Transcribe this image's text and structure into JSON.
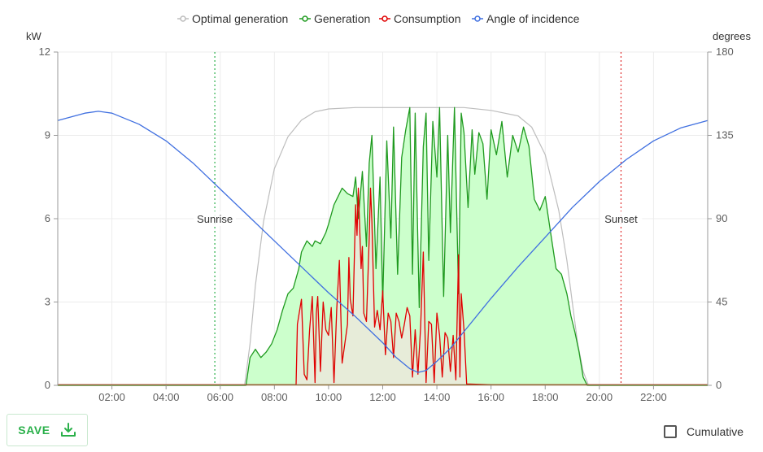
{
  "chart_data": {
    "type": "line",
    "x_unit": "hours",
    "x_range": [
      0,
      24
    ],
    "x_ticks": [
      {
        "value": 2,
        "label": "02:00"
      },
      {
        "value": 4,
        "label": "04:00"
      },
      {
        "value": 6,
        "label": "06:00"
      },
      {
        "value": 8,
        "label": "08:00"
      },
      {
        "value": 10,
        "label": "10:00"
      },
      {
        "value": 12,
        "label": "12:00"
      },
      {
        "value": 14,
        "label": "14:00"
      },
      {
        "value": 16,
        "label": "16:00"
      },
      {
        "value": 18,
        "label": "18:00"
      },
      {
        "value": 20,
        "label": "20:00"
      },
      {
        "value": 22,
        "label": "22:00"
      }
    ],
    "y_left": {
      "label": "kW",
      "range": [
        0,
        12
      ],
      "ticks": [
        0,
        3,
        6,
        9,
        12
      ]
    },
    "y_right": {
      "label": "degrees",
      "range": [
        0,
        180
      ],
      "ticks": [
        0,
        45,
        90,
        135,
        180
      ]
    },
    "grid": true,
    "legend_position": "top",
    "series": [
      {
        "name": "Optimal generation",
        "color": "#bdbdbd",
        "axis": "left",
        "x": [
          0,
          6.9,
          7.1,
          7.3,
          7.6,
          8.0,
          8.5,
          9.0,
          9.5,
          10.0,
          11.0,
          12.0,
          13.0,
          14.0,
          15.0,
          16.0,
          17.0,
          17.5,
          18.0,
          18.5,
          18.8,
          19.0,
          19.2,
          19.4,
          19.6,
          24
        ],
        "y": [
          0,
          0,
          1.5,
          3.6,
          5.9,
          7.8,
          8.95,
          9.55,
          9.85,
          9.95,
          10.0,
          10.0,
          10.0,
          10.0,
          10.0,
          9.9,
          9.7,
          9.3,
          8.3,
          6.3,
          4.5,
          3.0,
          1.5,
          0.5,
          0,
          0
        ]
      },
      {
        "name": "Generation",
        "color": "#1f9a1f",
        "fill": "#ccffcc",
        "axis": "left",
        "x": [
          0,
          6.95,
          7.1,
          7.3,
          7.5,
          7.7,
          7.9,
          8.1,
          8.3,
          8.5,
          8.7,
          8.9,
          9.0,
          9.2,
          9.4,
          9.5,
          9.7,
          9.9,
          10.0,
          10.2,
          10.35,
          10.5,
          10.7,
          10.9,
          11.0,
          11.1,
          11.25,
          11.4,
          11.5,
          11.6,
          11.75,
          11.9,
          12.0,
          12.15,
          12.3,
          12.4,
          12.55,
          12.7,
          12.85,
          13.0,
          13.1,
          13.2,
          13.35,
          13.5,
          13.6,
          13.7,
          13.85,
          14.0,
          14.1,
          14.25,
          14.4,
          14.5,
          14.65,
          14.8,
          14.9,
          15.0,
          15.15,
          15.3,
          15.4,
          15.55,
          15.7,
          15.85,
          16.0,
          16.2,
          16.4,
          16.6,
          16.8,
          17.0,
          17.2,
          17.4,
          17.6,
          17.8,
          18.0,
          18.2,
          18.4,
          18.6,
          18.8,
          18.95,
          19.1,
          19.25,
          19.4,
          19.55,
          19.6,
          24
        ],
        "y": [
          0,
          0,
          1.0,
          1.3,
          1.0,
          1.2,
          1.5,
          2.0,
          2.7,
          3.3,
          3.5,
          4.2,
          4.8,
          5.2,
          5.0,
          5.2,
          5.1,
          5.5,
          5.8,
          6.5,
          6.8,
          7.1,
          6.9,
          6.8,
          7.5,
          6.0,
          7.7,
          5.0,
          8.0,
          9.0,
          4.2,
          7.5,
          3.0,
          8.8,
          5.3,
          9.3,
          4.0,
          8.2,
          9.2,
          10.0,
          4.0,
          9.8,
          2.8,
          8.6,
          9.8,
          4.5,
          9.5,
          7.5,
          10.0,
          3.2,
          9.0,
          5.5,
          10.0,
          3.3,
          9.8,
          9.1,
          6.4,
          9.2,
          7.6,
          9.1,
          8.7,
          6.7,
          9.2,
          8.3,
          9.5,
          7.5,
          9.0,
          8.4,
          9.3,
          8.6,
          6.7,
          6.3,
          6.8,
          5.5,
          4.2,
          4.0,
          3.3,
          2.5,
          1.9,
          1.2,
          0.3,
          0,
          0,
          0
        ]
      },
      {
        "name": "Consumption",
        "color": "#e00000",
        "fill": "#eaeada",
        "axis": "left",
        "x": [
          0,
          8.8,
          8.85,
          9.0,
          9.1,
          9.2,
          9.3,
          9.4,
          9.5,
          9.55,
          9.6,
          9.7,
          9.8,
          9.9,
          10.0,
          10.1,
          10.2,
          10.3,
          10.4,
          10.5,
          10.6,
          10.7,
          10.75,
          10.8,
          10.9,
          11.0,
          11.05,
          11.1,
          11.2,
          11.25,
          11.3,
          11.4,
          11.5,
          11.55,
          11.6,
          11.7,
          11.8,
          11.9,
          12.0,
          12.1,
          12.2,
          12.3,
          12.4,
          12.5,
          12.6,
          12.7,
          12.8,
          12.9,
          13.0,
          13.1,
          13.2,
          13.3,
          13.4,
          13.5,
          13.6,
          13.7,
          13.8,
          13.9,
          14.0,
          14.1,
          14.2,
          14.3,
          14.4,
          14.5,
          14.6,
          14.7,
          14.8,
          14.85,
          14.9,
          15.0,
          15.1,
          16.0,
          24
        ],
        "y": [
          0.02,
          0.02,
          2.2,
          3.1,
          0.4,
          0.2,
          2.0,
          3.2,
          0.1,
          2.6,
          3.2,
          0.5,
          3.0,
          2.0,
          1.8,
          2.8,
          0.1,
          2.7,
          4.5,
          0.8,
          1.5,
          2.2,
          4.6,
          3.1,
          2.5,
          6.5,
          5.4,
          7.1,
          4.2,
          5.0,
          2.6,
          2.3,
          5.3,
          7.1,
          5.9,
          2.1,
          2.7,
          2.0,
          3.4,
          1.1,
          2.6,
          2.3,
          1.0,
          2.6,
          2.3,
          1.7,
          2.2,
          2.8,
          2.5,
          0.3,
          2.0,
          0.4,
          2.1,
          4.8,
          0.1,
          2.3,
          2.2,
          0.1,
          2.6,
          1.8,
          0.3,
          1.9,
          1.7,
          0.5,
          1.8,
          0.2,
          4.7,
          0.3,
          3.3,
          2.0,
          0.05,
          0.02,
          0.02
        ]
      },
      {
        "name": "Angle of incidence",
        "color": "#3f6fe0",
        "axis": "right",
        "x": [
          0,
          1.0,
          1.5,
          2.0,
          3.0,
          4.0,
          5.0,
          6.0,
          7.0,
          8.0,
          9.0,
          10.0,
          11.0,
          12.0,
          12.5,
          13.0,
          13.3,
          13.6,
          14.0,
          14.5,
          15.0,
          16.0,
          17.0,
          18.0,
          19.0,
          20.0,
          21.0,
          22.0,
          23.0,
          24.0
        ],
        "y": [
          143,
          147,
          148,
          147,
          141,
          132,
          120,
          106,
          92,
          78,
          64,
          50,
          37,
          23,
          15,
          9,
          7,
          8,
          13,
          20,
          29,
          47,
          64,
          80,
          96,
          110,
          122,
          132,
          139,
          143
        ]
      }
    ],
    "annotations": [
      {
        "text": "Sunrise",
        "x": 5.8,
        "color": "#2ab04a",
        "style": "dotted"
      },
      {
        "text": "Sunset",
        "x": 20.8,
        "color": "#e03030",
        "style": "dotted"
      }
    ]
  },
  "controls": {
    "save_label": "SAVE",
    "save_icon": "download-icon",
    "cumulative_label": "Cumulative",
    "cumulative_checked": false
  }
}
